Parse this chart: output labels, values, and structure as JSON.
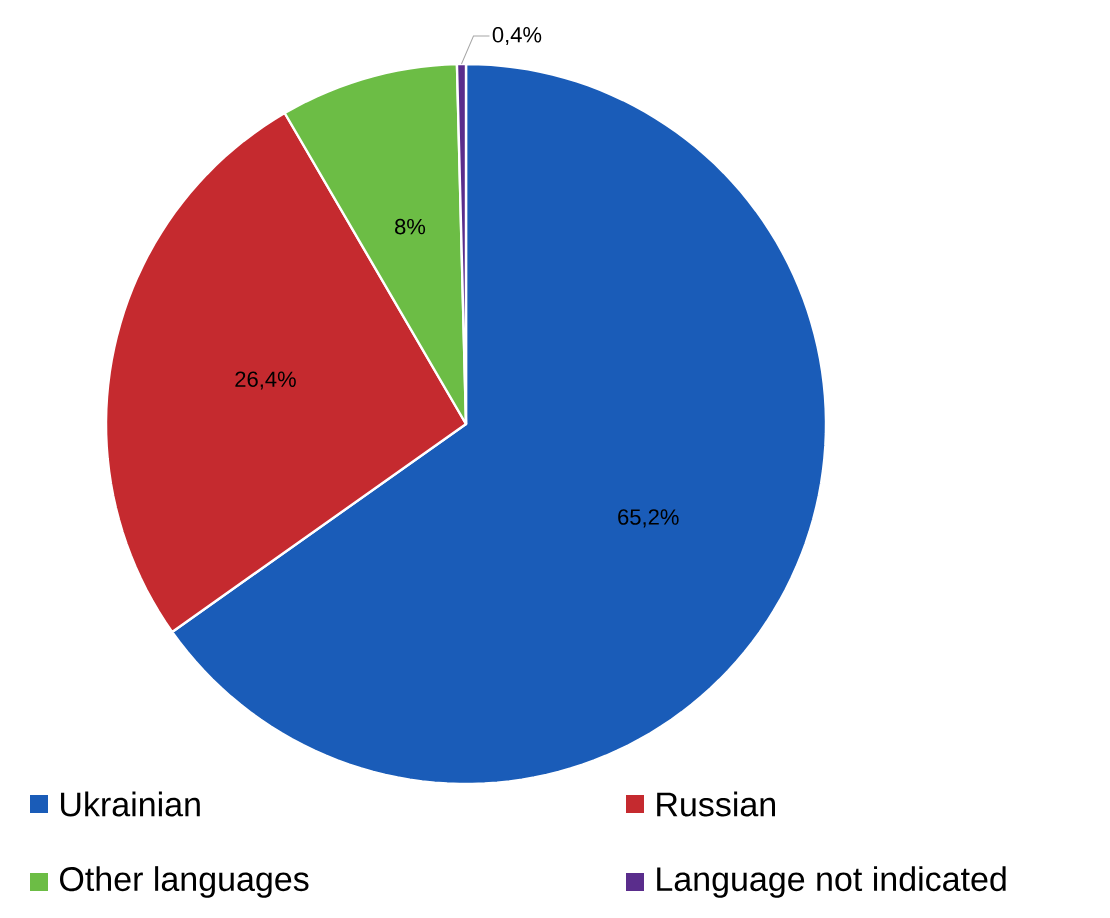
{
  "chart_data": {
    "type": "pie",
    "categories": [
      "Ukrainian",
      "Russian",
      "Other languages",
      "Language not indicated"
    ],
    "values": [
      65.2,
      26.4,
      8,
      0.4
    ],
    "colors": [
      "#1a5cb8",
      "#c52a2f",
      "#6cbd45",
      "#5a2d8c"
    ],
    "value_labels": [
      "65,2%",
      "26,4%",
      "8%",
      "0,4%"
    ],
    "legend": "bottom"
  }
}
